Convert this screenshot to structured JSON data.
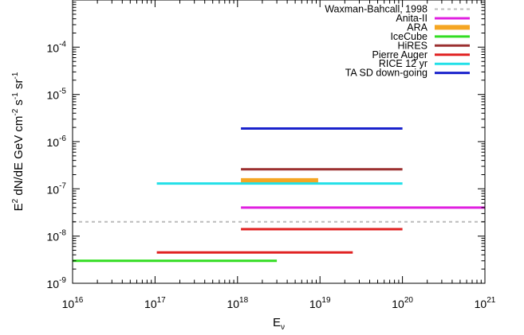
{
  "chart_data": {
    "type": "line",
    "title": "",
    "xscale": "log",
    "yscale": "log",
    "xlim": [
      1e+16,
      1e+21
    ],
    "ylim": [
      1e-09,
      0.001
    ],
    "grid": false,
    "legend_position": "top-right",
    "xlabel": {
      "base": "E",
      "sub": "ν"
    },
    "ylabel": {
      "parts": [
        {
          "text": "E",
          "sup": false
        },
        {
          "text": "2",
          "sup": true
        },
        {
          "text": " dN/dE GeV cm",
          "sup": false
        },
        {
          "text": "-2",
          "sup": true
        },
        {
          "text": " s",
          "sup": false
        },
        {
          "text": "-1",
          "sup": true
        },
        {
          "text": " sr",
          "sup": false
        },
        {
          "text": "-1",
          "sup": true
        }
      ]
    },
    "x_ticks": [
      {
        "value": 1e+16,
        "base": "10",
        "exp": "16"
      },
      {
        "value": 1e+17,
        "base": "10",
        "exp": "17"
      },
      {
        "value": 1e+18,
        "base": "10",
        "exp": "18"
      },
      {
        "value": 1e+19,
        "base": "10",
        "exp": "19"
      },
      {
        "value": 1e+20,
        "base": "10",
        "exp": "20"
      },
      {
        "value": 1e+21,
        "base": "10",
        "exp": "21"
      }
    ],
    "y_ticks": [
      {
        "value": 1e-09,
        "base": "10",
        "exp": "-9"
      },
      {
        "value": 1e-08,
        "base": "10",
        "exp": "-8"
      },
      {
        "value": 1e-07,
        "base": "10",
        "exp": "-7"
      },
      {
        "value": 1e-06,
        "base": "10",
        "exp": "-6"
      },
      {
        "value": 1e-05,
        "base": "10",
        "exp": "-5"
      },
      {
        "value": 0.0001,
        "base": "10",
        "exp": "-4"
      }
    ],
    "series": [
      {
        "name": "Waxman-Bahcall, 1998",
        "color": "#bbbbbb",
        "dash": true,
        "width": 2,
        "x": [
          1e+16,
          1e+21
        ],
        "y": [
          2e-08,
          2e-08
        ]
      },
      {
        "name": "Anita-II",
        "color": "#e020e0",
        "dash": false,
        "width": 3,
        "x": [
          1.1e+18,
          1e+21
        ],
        "y": [
          4e-08,
          4e-08
        ]
      },
      {
        "name": "ARA",
        "color": "#f5a623",
        "dash": false,
        "width": 6,
        "x": [
          1.1e+18,
          9.5e+18
        ],
        "y": [
          1.5e-07,
          1.5e-07
        ]
      },
      {
        "name": "IceCube",
        "color": "#33dd22",
        "dash": false,
        "width": 3,
        "x": [
          1e+16,
          3e+18
        ],
        "y": [
          3e-09,
          3e-09
        ]
      },
      {
        "name": "HiRES",
        "color": "#9b3030",
        "dash": false,
        "width": 3,
        "x": [
          1.1e+18,
          1e+20
        ],
        "y": [
          2.6e-07,
          2.6e-07
        ]
      },
      {
        "name": "Pierre Auger",
        "color": "#e02020",
        "dash": false,
        "width": 3,
        "x": [
          1.05e+17,
          2.5e+19
        ],
        "y": [
          4.5e-09,
          4.5e-09
        ]
      },
      {
        "name": "Pierre Auger",
        "color": "#e02020",
        "dash": false,
        "width": 3,
        "x": [
          1.1e+18,
          1e+20
        ],
        "y": [
          1.4e-08,
          1.4e-08
        ]
      },
      {
        "name": "RICE 12 yr",
        "color": "#22e0e8",
        "dash": false,
        "width": 3,
        "x": [
          1.05e+17,
          1e+20
        ],
        "y": [
          1.3e-07,
          1.3e-07
        ]
      },
      {
        "name": "TA SD down-going",
        "color": "#1a22cc",
        "dash": false,
        "width": 3,
        "x": [
          1.1e+18,
          1e+20
        ],
        "y": [
          1.9e-06,
          1.9e-06
        ]
      }
    ],
    "legend": [
      {
        "label": "Waxman-Bahcall, 1998",
        "color": "#bbbbbb",
        "dash": true,
        "width": 2
      },
      {
        "label": "Anita-II",
        "color": "#e020e0",
        "dash": false,
        "width": 3
      },
      {
        "label": "ARA",
        "color": "#f5a623",
        "dash": false,
        "width": 6
      },
      {
        "label": "IceCube",
        "color": "#33dd22",
        "dash": false,
        "width": 3
      },
      {
        "label": "HiRES",
        "color": "#9b3030",
        "dash": false,
        "width": 3
      },
      {
        "label": "Pierre Auger",
        "color": "#e02020",
        "dash": false,
        "width": 3
      },
      {
        "label": "RICE 12 yr",
        "color": "#22e0e8",
        "dash": false,
        "width": 3
      },
      {
        "label": "TA SD down-going",
        "color": "#1a22cc",
        "dash": false,
        "width": 3
      }
    ]
  }
}
